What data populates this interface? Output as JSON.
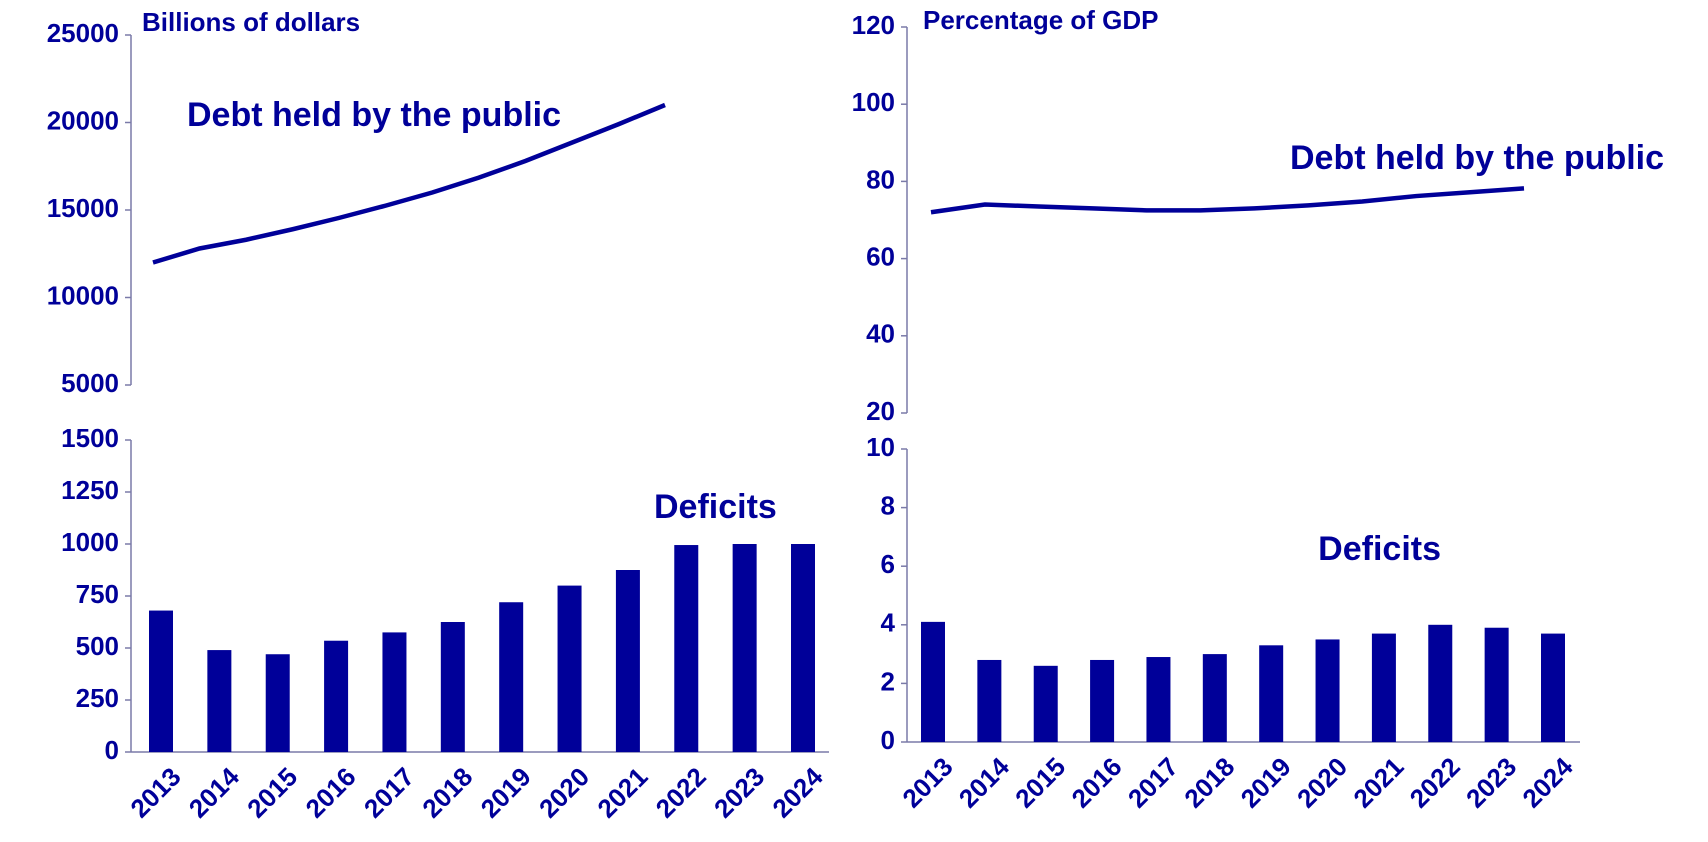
{
  "chart_data": [
    {
      "type": "line",
      "ylabel": "Billions of dollars",
      "annotation": "Debt held by the public",
      "color": "#000099",
      "values": [
        12000,
        12800,
        13300,
        13900,
        14550,
        15250,
        16000,
        16850,
        17800,
        18850,
        19900,
        21000
      ],
      "ylim": [
        5000,
        25000
      ],
      "yticks": [
        5000,
        10000,
        15000,
        20000,
        25000
      ]
    },
    {
      "type": "bar",
      "annotation": "Deficits",
      "color": "#000099",
      "categories": [
        "2013",
        "2014",
        "2015",
        "2016",
        "2017",
        "2018",
        "2019",
        "2020",
        "2021",
        "2022",
        "2023",
        "2024"
      ],
      "values": [
        680,
        490,
        470,
        535,
        575,
        625,
        720,
        800,
        875,
        995,
        1000,
        1000
      ],
      "ylim": [
        0,
        1500
      ],
      "yticks": [
        0,
        250,
        500,
        750,
        1000,
        1250,
        1500
      ]
    },
    {
      "type": "line",
      "ylabel": "Percentage of GDP",
      "annotation": "Debt held by the public",
      "color": "#000099",
      "values": [
        72,
        74,
        73.5,
        73,
        72.5,
        72.5,
        73,
        73.8,
        74.8,
        76.2,
        77.2,
        78.2
      ],
      "ylim": [
        20,
        120
      ],
      "yticks": [
        20,
        40,
        60,
        80,
        100,
        120
      ]
    },
    {
      "type": "bar",
      "annotation": "Deficits",
      "color": "#000099",
      "categories": [
        "2013",
        "2014",
        "2015",
        "2016",
        "2017",
        "2018",
        "2019",
        "2020",
        "2021",
        "2022",
        "2023",
        "2024"
      ],
      "values": [
        4.1,
        2.8,
        2.6,
        2.8,
        2.9,
        3.0,
        3.3,
        3.5,
        3.7,
        4.0,
        3.9,
        3.7
      ],
      "ylim": [
        0,
        10
      ],
      "yticks": [
        0,
        2,
        4,
        6,
        8,
        10
      ]
    }
  ]
}
